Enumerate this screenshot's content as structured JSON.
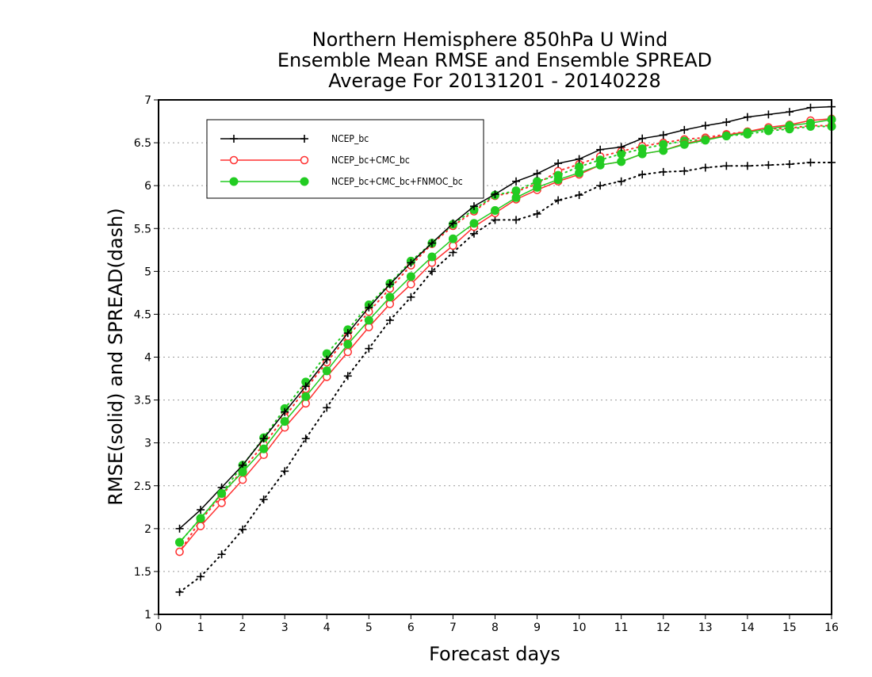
{
  "chart_data": {
    "type": "line",
    "title": [
      "Northern Hemisphere 850hPa U Wind",
      "Ensemble Mean RMSE and Ensemble SPREAD",
      "Average For 20131201 - 20140228"
    ],
    "xlabel": "Forecast days",
    "ylabel": "RMSE(solid) and SPREAD(dash)",
    "xlim": [
      0,
      16
    ],
    "ylim": [
      1,
      7
    ],
    "x_ticks": [
      "0",
      "1",
      "2",
      "3",
      "4",
      "5",
      "6",
      "7",
      "8",
      "9",
      "10",
      "11",
      "12",
      "13",
      "14",
      "15",
      "16"
    ],
    "y_ticks": [
      "1",
      "1.5",
      "2",
      "2.5",
      "3",
      "3.5",
      "4",
      "4.5",
      "5",
      "5.5",
      "6",
      "6.5",
      "7"
    ],
    "grid": "horizontal dotted",
    "legend_position": "top-left",
    "x": [
      0.5,
      1,
      1.5,
      2,
      2.5,
      3,
      3.5,
      4,
      4.5,
      5,
      5.5,
      6,
      6.5,
      7,
      7.5,
      8,
      8.5,
      9,
      9.5,
      10,
      10.5,
      11,
      11.5,
      12,
      12.5,
      13,
      13.5,
      14,
      14.5,
      15,
      15.5,
      16
    ],
    "series": [
      {
        "name": "NCEP_bc",
        "metric": "RMSE",
        "color": "#000000",
        "marker": "plus",
        "style": "solid",
        "values": [
          2.0,
          2.22,
          2.48,
          2.74,
          3.05,
          3.36,
          3.66,
          3.97,
          4.28,
          4.58,
          4.85,
          5.1,
          5.33,
          5.56,
          5.76,
          5.9,
          6.05,
          6.14,
          6.26,
          6.31,
          6.42,
          6.45,
          6.55,
          6.59,
          6.65,
          6.7,
          6.74,
          6.8,
          6.83,
          6.86,
          6.91,
          6.92
        ]
      },
      {
        "name": "NCEP_bc+CMC_bc",
        "metric": "RMSE",
        "color": "#ff3030",
        "marker": "open-circle",
        "style": "solid",
        "values": [
          1.73,
          2.03,
          2.3,
          2.57,
          2.86,
          3.18,
          3.46,
          3.77,
          4.06,
          4.35,
          4.62,
          4.85,
          5.1,
          5.3,
          5.52,
          5.68,
          5.84,
          5.95,
          6.05,
          6.13,
          6.24,
          6.28,
          6.37,
          6.41,
          6.49,
          6.54,
          6.59,
          6.63,
          6.68,
          6.71,
          6.76,
          6.78
        ]
      },
      {
        "name": "NCEP_bc+CMC_bc+FNMOC_bc",
        "metric": "RMSE",
        "color": "#22cc22",
        "marker": "filled-circle",
        "style": "solid",
        "values": [
          1.84,
          2.12,
          2.41,
          2.66,
          2.93,
          3.25,
          3.54,
          3.84,
          4.15,
          4.43,
          4.7,
          4.94,
          5.17,
          5.38,
          5.56,
          5.71,
          5.86,
          5.98,
          6.07,
          6.15,
          6.24,
          6.28,
          6.37,
          6.41,
          6.48,
          6.53,
          6.58,
          6.62,
          6.66,
          6.7,
          6.73,
          6.77
        ]
      },
      {
        "name": "NCEP_bc",
        "metric": "SPREAD",
        "color": "#000000",
        "marker": "plus",
        "style": "dotted",
        "values": [
          1.26,
          1.44,
          1.7,
          1.99,
          2.34,
          2.67,
          3.05,
          3.41,
          3.78,
          4.1,
          4.43,
          4.7,
          5.0,
          5.22,
          5.44,
          5.6,
          5.6,
          5.67,
          5.83,
          5.89,
          6.0,
          6.05,
          6.13,
          6.16,
          6.17,
          6.21,
          6.23,
          6.23,
          6.24,
          6.25,
          6.27,
          6.27
        ]
      },
      {
        "name": "NCEP_bc+CMC_bc",
        "metric": "SPREAD",
        "color": "#ff3030",
        "marker": "open-circle",
        "style": "dotted",
        "values": [
          1.73,
          2.1,
          2.38,
          2.69,
          2.98,
          3.3,
          3.63,
          3.94,
          4.24,
          4.53,
          4.8,
          5.07,
          5.32,
          5.53,
          5.7,
          5.88,
          5.93,
          6.02,
          6.17,
          6.25,
          6.34,
          6.4,
          6.46,
          6.5,
          6.54,
          6.56,
          6.6,
          6.63,
          6.66,
          6.67,
          6.7,
          6.7
        ]
      },
      {
        "name": "NCEP_bc+CMC_bc+FNMOC_bc",
        "metric": "SPREAD",
        "color": "#22cc22",
        "marker": "filled-circle",
        "style": "dotted",
        "values": [
          1.84,
          2.12,
          2.41,
          2.74,
          3.06,
          3.4,
          3.71,
          4.04,
          4.32,
          4.61,
          4.86,
          5.12,
          5.33,
          5.55,
          5.72,
          5.89,
          5.94,
          6.05,
          6.12,
          6.22,
          6.3,
          6.37,
          6.43,
          6.48,
          6.52,
          6.54,
          6.58,
          6.6,
          6.64,
          6.66,
          6.69,
          6.69
        ]
      }
    ]
  }
}
